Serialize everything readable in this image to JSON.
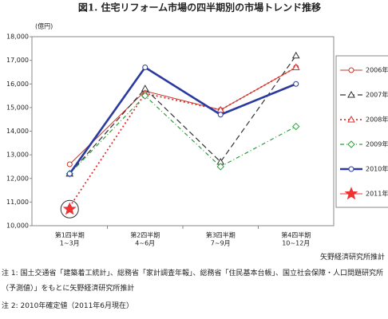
{
  "chart_data": {
    "type": "line",
    "title": "図1. 住宅リフォーム市場の四半期別の市場トレンド推移",
    "y_unit": "(億円)",
    "categories": [
      "第1四半期",
      "第2四半期",
      "第3四半期",
      "第4四半期"
    ],
    "category_months": [
      "1~3月",
      "4~6月",
      "7~9月",
      "10~12月"
    ],
    "ylim": [
      10000,
      18000
    ],
    "yticks": [
      {
        "value": 10000,
        "label": "10,000"
      },
      {
        "value": 11000,
        "label": "11,000"
      },
      {
        "value": 12000,
        "label": "12,000"
      },
      {
        "value": 13000,
        "label": "13,000"
      },
      {
        "value": 14000,
        "label": "14,000"
      },
      {
        "value": 15000,
        "label": "15,000"
      },
      {
        "value": 16000,
        "label": "16,000"
      },
      {
        "value": 17000,
        "label": "17,000"
      },
      {
        "value": 18000,
        "label": "18,000"
      }
    ],
    "series": [
      {
        "name": "2006年",
        "color": "#c0392b",
        "width": 1,
        "dash": "none",
        "marker": "circle",
        "values": [
          12600,
          15700,
          14900,
          16700
        ]
      },
      {
        "name": "2007年",
        "color": "#333333",
        "width": 1.2,
        "dash": "7 4",
        "marker": "triangle",
        "values": [
          12200,
          15800,
          12700,
          17200
        ]
      },
      {
        "name": "2008年",
        "color": "#e03030",
        "width": 1.8,
        "dash": "2 3",
        "marker": "triangle",
        "values": [
          10800,
          15600,
          14900,
          16700
        ]
      },
      {
        "name": "2009年",
        "color": "#2e9e3e",
        "width": 1.2,
        "dash": "5 3 1 3",
        "marker": "diamond",
        "values": [
          12200,
          15500,
          12500,
          14200
        ]
      },
      {
        "name": "2010年",
        "color": "#2b3a9e",
        "width": 2.6,
        "dash": "none",
        "marker": "circle",
        "values": [
          12200,
          16700,
          14700,
          16000
        ]
      },
      {
        "name": "2011年",
        "color": "#ee3333",
        "width": 1,
        "dash": "none",
        "marker": "star",
        "values": [
          10700,
          null,
          null,
          null
        ]
      }
    ],
    "source": "矢野経済研究所推計",
    "notes": [
      "注 1: 国土交通省「建築着工統計」、総務省「家計調査年報」、総務省「住民基本台帳」、国立社会保障・人口問題研究所（予測値）」をもとに矢野経済研究所推計",
      "注 2: 2010年確定値（2011年6月現在）"
    ]
  }
}
